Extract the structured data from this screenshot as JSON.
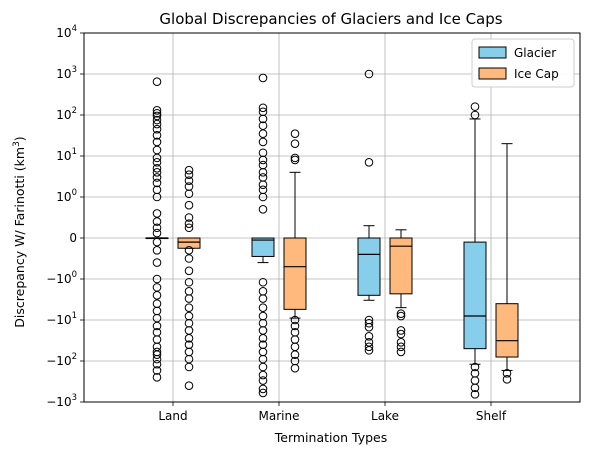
{
  "chart_data": {
    "type": "box",
    "title": "Global Discrepancies of Glaciers and Ice Caps",
    "xlabel": "Termination Types",
    "ylabel": "Discrepancy W/ Farinotti (km³)",
    "yscale": "symlog",
    "ylim": [
      -1000,
      10000
    ],
    "grid": true,
    "legend_position": "top-right",
    "categories": [
      "Land",
      "Marine",
      "Lake",
      "Shelf"
    ],
    "yticks": [
      {
        "value": 10000,
        "label": "10",
        "exp": "4"
      },
      {
        "value": 1000,
        "label": "10",
        "exp": "3"
      },
      {
        "value": 100,
        "label": "10",
        "exp": "2"
      },
      {
        "value": 10,
        "label": "10",
        "exp": "1"
      },
      {
        "value": 1,
        "label": "10",
        "exp": "0"
      },
      {
        "value": 0,
        "label": "0",
        "exp": ""
      },
      {
        "value": -1,
        "label": "−10",
        "exp": "0"
      },
      {
        "value": -10,
        "label": "−10",
        "exp": "1"
      },
      {
        "value": -100,
        "label": "−10",
        "exp": "2"
      },
      {
        "value": -1000,
        "label": "−10",
        "exp": "3"
      }
    ],
    "series": [
      {
        "name": "Glacier",
        "color": "#87ceeb",
        "boxes": [
          {
            "category": "Land",
            "whislo": -0.003,
            "q1": -0.001,
            "med": 0.0,
            "q3": 0.001,
            "whishi": 0.003,
            "fliers": [
              650,
              130,
              110,
              95,
              75,
              60,
              45,
              32,
              22,
              14,
              9,
              7,
              5,
              4,
              3,
              2.2,
              1.5,
              1.0,
              0.6,
              0.4,
              0.25,
              0.12,
              -0.1,
              -0.3,
              -0.6,
              -1.0,
              -1.6,
              -2.5,
              -4,
              -6,
              -9,
              -14,
              -20,
              -30,
              -45,
              -60,
              -70,
              -90,
              -120,
              -170,
              -250
            ]
          },
          {
            "category": "Marine",
            "whislo": -0.6,
            "q1": -0.45,
            "med": -0.05,
            "q3": 0.0,
            "whishi": 0.0,
            "fliers": [
              800,
              150,
              120,
              80,
              55,
              35,
              22,
              12,
              8,
              6,
              4,
              3,
              2,
              1.5,
              1.0,
              0.7,
              -1.2,
              -2,
              -3,
              -5,
              -8,
              -12,
              -18,
              -28,
              -40,
              -60,
              -90,
              -140,
              -220,
              -300,
              -480,
              -600
            ]
          },
          {
            "category": "Lake",
            "whislo": -3.3,
            "q1": -2.5,
            "med": -0.4,
            "q3": 0.0,
            "whishi": 0.3,
            "fliers": [
              1000,
              7,
              -10,
              -12,
              -15,
              -25,
              -35,
              -45,
              -55
            ]
          },
          {
            "category": "Shelf",
            "whislo": -120,
            "q1": -50,
            "med": -8,
            "q3": -0.1,
            "whishi": 80,
            "fliers": [
              160,
              100,
              -140,
              -200,
              -300,
              -450,
              -650
            ]
          }
        ]
      },
      {
        "name": "Ice Cap",
        "color": "#ffb97d",
        "boxes": [
          {
            "category": "Land",
            "whislo": -0.25,
            "q1": -0.25,
            "med": -0.1,
            "q3": 0.0,
            "whishi": 0.0,
            "fliers": [
              4.5,
              3.5,
              2.5,
              1.8,
              1.2,
              0.8,
              0.5,
              0.35,
              0.25,
              -0.3,
              -0.5,
              -0.8,
              -1.2,
              -2,
              -3,
              -5,
              -8,
              -12,
              -18,
              -28,
              -40,
              -60,
              -90,
              -140,
              -400
            ]
          },
          {
            "category": "Marine",
            "whislo": -9,
            "q1": -5.5,
            "med": -0.7,
            "q3": 0.0,
            "whishi": 4,
            "fliers": [
              35,
              20,
              9,
              8,
              -10,
              -14,
              -20,
              -30,
              -45,
              -70,
              -100,
              -150
            ]
          },
          {
            "category": "Lake",
            "whislo": -5,
            "q1": -2.3,
            "med": -0.2,
            "q3": 0.0,
            "whishi": 0.2,
            "fliers": [
              -7,
              -8,
              -18,
              -22,
              -35,
              -45,
              -60
            ]
          },
          {
            "category": "Shelf",
            "whislo": -170,
            "q1": -80,
            "med": -32,
            "q3": -4,
            "whishi": 20,
            "fliers": [
              -200,
              -280
            ]
          }
        ]
      }
    ]
  }
}
